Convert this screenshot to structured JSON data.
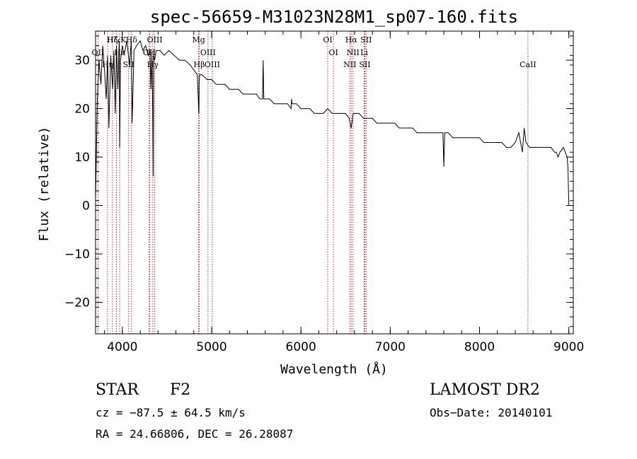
{
  "chart_data": {
    "type": "line",
    "title": "spec-56659-M31023N28M1_sp07-160.fits",
    "xlabel": "Wavelength (Å)",
    "ylabel": "Flux (relative)",
    "xlim": [
      3700,
      9050
    ],
    "ylim": [
      -26.5,
      36
    ],
    "x_ticks": [
      4000,
      5000,
      6000,
      7000,
      8000,
      9000
    ],
    "y_ticks": [
      -20,
      -10,
      0,
      10,
      20,
      30
    ],
    "grid": false,
    "legend": "none",
    "colors": {
      "spectrum": "#000000",
      "lines": "#b03030",
      "axes": "#000000"
    },
    "series": [
      {
        "x": [
          3700,
          3720,
          3740,
          3760,
          3780,
          3800,
          3820,
          3835,
          3850,
          3870,
          3890,
          3905,
          3920,
          3935,
          3950,
          3965,
          3970,
          3980,
          4000,
          4020,
          4050,
          4080,
          4100,
          4110,
          4130,
          4160,
          4200,
          4230,
          4260,
          4290,
          4310,
          4320,
          4330,
          4340,
          4345,
          4350,
          4360,
          4380,
          4420,
          4470,
          4520,
          4580,
          4640,
          4700,
          4760,
          4800,
          4840,
          4856,
          4861,
          4866,
          4890,
          4950,
          5000,
          5050,
          5100,
          5150,
          5200,
          5250,
          5300,
          5350,
          5400,
          5450,
          5500,
          5540,
          5570,
          5577,
          5584,
          5600,
          5650,
          5700,
          5750,
          5800,
          5850,
          5890,
          5895,
          5900,
          5950,
          6000,
          6050,
          6100,
          6150,
          6200,
          6250,
          6300,
          6350,
          6400,
          6450,
          6500,
          6540,
          6563,
          6585,
          6600,
          6650,
          6700,
          6750,
          6800,
          6850,
          6900,
          6950,
          7000,
          7050,
          7100,
          7150,
          7200,
          7250,
          7300,
          7350,
          7400,
          7450,
          7500,
          7550,
          7590,
          7600,
          7610,
          7650,
          7700,
          7750,
          7800,
          7850,
          7900,
          7950,
          8000,
          8050,
          8100,
          8150,
          8200,
          8250,
          8300,
          8350,
          8400,
          8440,
          8480,
          8500,
          8520,
          8560,
          8600,
          8650,
          8700,
          8750,
          8800,
          8840,
          8860,
          8880,
          8900,
          8940,
          8980,
          8990,
          9000,
          9005
        ],
        "y": [
          1,
          22,
          30,
          25,
          33,
          28,
          22,
          31,
          16,
          31,
          24,
          32,
          19,
          33,
          24,
          34,
          12,
          30,
          33,
          31,
          34,
          29,
          34,
          17,
          32,
          33,
          34,
          32,
          33,
          31,
          32,
          24,
          31,
          20,
          6,
          31,
          30,
          32,
          32,
          31,
          32,
          31,
          30,
          30,
          29,
          28,
          27,
          19,
          26,
          27,
          27,
          26,
          26,
          25,
          25,
          25,
          24,
          24,
          24,
          23,
          23,
          23,
          23,
          22,
          22,
          30,
          22,
          22,
          22,
          21,
          21,
          21,
          21,
          20,
          22,
          21,
          21,
          20,
          20,
          20,
          19,
          19,
          19,
          20,
          19,
          19,
          19,
          19,
          18,
          16,
          19,
          19,
          19,
          18,
          18,
          18,
          17,
          17,
          17,
          17,
          17,
          16,
          16,
          16,
          16,
          15,
          15,
          15,
          15,
          15,
          15,
          15,
          8,
          15,
          15,
          14,
          14,
          14,
          14,
          14,
          14,
          14,
          13,
          13,
          13,
          13,
          13,
          12,
          12,
          13,
          15,
          11,
          16,
          13,
          12,
          12,
          12,
          12,
          12,
          12,
          11,
          11,
          10,
          11,
          12,
          10,
          8,
          0,
          0
        ]
      }
    ],
    "line_markers": [
      {
        "label": "H&K",
        "x": 3934
      },
      {
        "label": "OII",
        "x": 3727
      },
      {
        "label": "Hη",
        "x": 3835
      },
      {
        "label": "Hζ",
        "x": 3889
      },
      {
        "label": "Hε",
        "x": 3970
      },
      {
        "label": "SII",
        "x": 4070
      },
      {
        "label": "Hδ",
        "x": 4102
      },
      {
        "label": "CH",
        "x": 4300
      },
      {
        "label": "Hγ",
        "x": 4341
      },
      {
        "label": "OIII",
        "x": 4363
      },
      {
        "label": "G",
        "x": 4308
      },
      {
        "label": "Hβ",
        "x": 4861
      },
      {
        "label": "Mg",
        "x": 4854
      },
      {
        "label": "OIII",
        "x": 4959
      },
      {
        "label": "OIII",
        "x": 5007
      },
      {
        "label": "OI",
        "x": 6300
      },
      {
        "label": "OI",
        "x": 6364
      },
      {
        "label": "NII",
        "x": 6548
      },
      {
        "label": "Hα",
        "x": 6563
      },
      {
        "label": "NII",
        "x": 6583
      },
      {
        "label": "SII",
        "x": 6716
      },
      {
        "label": "SII",
        "x": 6731
      },
      {
        "label": "Li",
        "x": 6708
      },
      {
        "label": "CaII",
        "x": 8542
      }
    ]
  },
  "info": {
    "object_class": "STAR",
    "subclass": "F2",
    "survey": "LAMOST DR2",
    "cz": "cz = −87.5 ± 64.5 km/s",
    "obs_date": "Obs−Date: 20140101",
    "coords": "RA =  24.66806, DEC =  26.28087"
  }
}
